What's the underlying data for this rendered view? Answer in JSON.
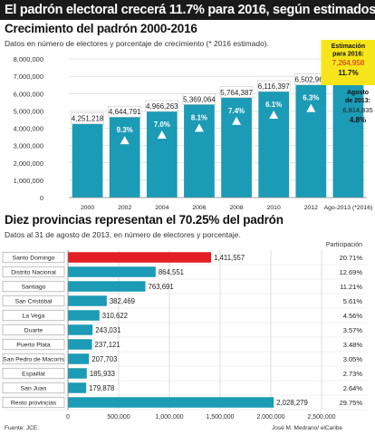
{
  "headline": "El padrón electoral crecerá 11.7% para 2016, según estimados",
  "source": "Fuente: JCE.",
  "credit": "José M. Medrano/ elCaribe",
  "colors": {
    "bar": "#1b9bb5",
    "highlight": "#e31e24",
    "estimate_box": "#f6e51b",
    "arrow": "#ffffff"
  },
  "chart_data": [
    {
      "type": "bar",
      "title": "Crecimiento del padrón 2000-2016",
      "subtitle": "Datos en número de electores y porcentaje de crecimiento (* 2016 estimado).",
      "categories": [
        "2000",
        "2002",
        "2004",
        "2006",
        "2008",
        "2010",
        "2012",
        "Ago-2013 (*2016)"
      ],
      "values": [
        4251218,
        4644791,
        4966263,
        5369064,
        5764387,
        6116397,
        6502968,
        6814835
      ],
      "value_labels": [
        "4,251,218",
        "4,644,791",
        "4,966,263",
        "5,369,064",
        "5,764,387",
        "6,116,397",
        "6,502,968",
        ""
      ],
      "growth_labels": [
        "",
        "9.3%",
        "7.0%",
        "8.1%",
        "7.4%",
        "6.1%",
        "6.3%",
        ""
      ],
      "estimate_2016": {
        "value": 7264958,
        "label_title": "Estimación para 2016:",
        "value_label": "7,264,958",
        "growth_label": "11.7%"
      },
      "ago_2013": {
        "value": 6814835,
        "label_title": "Agosto de 2013:",
        "value_label": "6,814,835",
        "growth_label": "4.8%"
      },
      "yticks": [
        "0",
        "1,000,000",
        "2,000,000",
        "3,000,000",
        "4,000,000",
        "5,000,000",
        "6,000,000",
        "7,000,000",
        "8,000,000"
      ],
      "ylim": [
        0,
        8000000
      ],
      "grid": true
    },
    {
      "type": "bar",
      "orientation": "horizontal",
      "title": "Diez provincias representan el 70.25% del padrón",
      "subtitle": "Datos al 31 de agosto de 2013, en número de electores y porcentaje.",
      "share_header": "Participación",
      "categories": [
        "Santo Domingo",
        "Distrito Nacional",
        "Santiago",
        "San Cristóbal",
        "La Vega",
        "Duarte",
        "Puerto Plata",
        "San Pedro de Macorís",
        "Espaillat",
        "San Juan",
        "Resto provincias"
      ],
      "values": [
        1411557,
        864551,
        763691,
        382469,
        310622,
        243031,
        237121,
        207703,
        185933,
        179878,
        2028279
      ],
      "value_labels": [
        "1,411,557",
        "864,551",
        "763,691",
        "382,469",
        "310,622",
        "243,031",
        "237,121",
        "207,703",
        "185,933",
        "179,878",
        "2,028,279"
      ],
      "shares": [
        "20.71%",
        "12.69%",
        "11.21%",
        "5.61%",
        "4.56%",
        "3.57%",
        "3.48%",
        "3.05%",
        "2.73%",
        "2.64%",
        "29.75%"
      ],
      "xticks": [
        "0",
        "500,000",
        "1,000,000",
        "1,500,000",
        "2,000,000",
        "2,500,000"
      ],
      "xlim": [
        0,
        2500000
      ],
      "grid": true
    }
  ]
}
